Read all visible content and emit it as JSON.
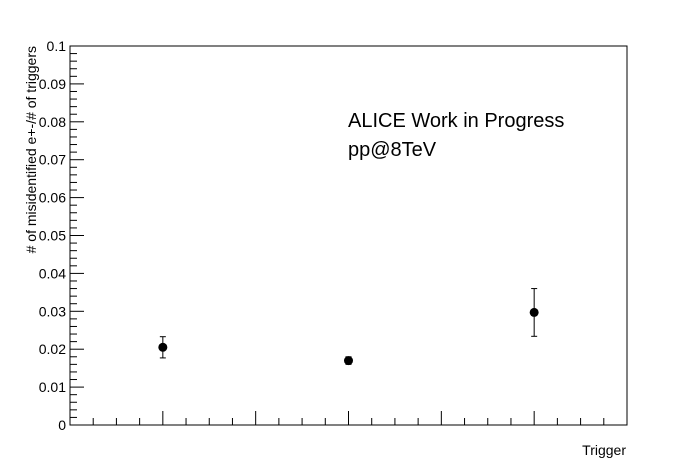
{
  "chart_data": {
    "type": "scatter",
    "xlabel": "Trigger",
    "ylabel": "# of misidentified e+-/# of triggers",
    "ylim": [
      0,
      0.1
    ],
    "xlim": [
      0,
      3
    ],
    "yticks": [
      "0",
      "0.01",
      "0.02",
      "0.03",
      "0.04",
      "0.05",
      "0.06",
      "0.07",
      "0.08",
      "0.09",
      "0.1"
    ],
    "annotations": [
      "ALICE Work in Progress",
      "pp@8TeV"
    ],
    "points": [
      {
        "x": 0.5,
        "y": 0.0205,
        "err": 0.0028
      },
      {
        "x": 1.5,
        "y": 0.017,
        "err": 0.001
      },
      {
        "x": 2.5,
        "y": 0.0297,
        "err": 0.0063
      }
    ],
    "grid": false,
    "legend": "none"
  }
}
